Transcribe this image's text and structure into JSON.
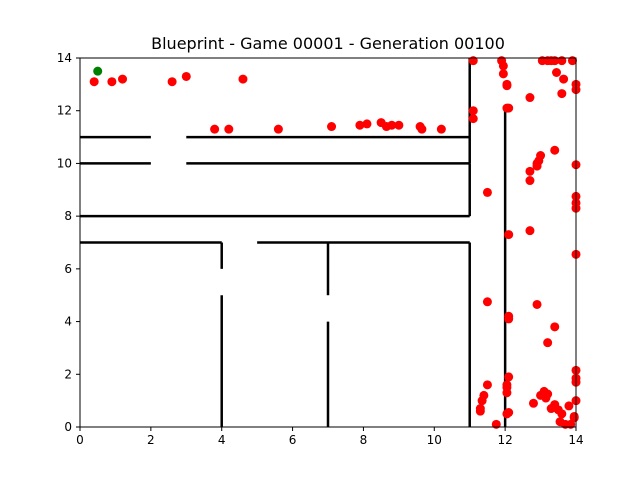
{
  "chart_data": {
    "type": "scatter",
    "title": "Blueprint - Game 00001 - Generation 00100",
    "xlabel": "",
    "ylabel": "",
    "xlim": [
      0,
      14
    ],
    "ylim": [
      0,
      14
    ],
    "x_ticks": [
      "0",
      "2",
      "4",
      "6",
      "8",
      "10",
      "12",
      "14"
    ],
    "y_ticks": [
      "0",
      "2",
      "4",
      "6",
      "8",
      "10",
      "12",
      "14"
    ],
    "grid": false,
    "walls": [
      [
        [
          11,
          14
        ],
        [
          11,
          10
        ]
      ],
      [
        [
          0,
          11
        ],
        [
          2,
          11
        ]
      ],
      [
        [
          3,
          11
        ],
        [
          11,
          11
        ]
      ],
      [
        [
          0,
          10
        ],
        [
          2,
          10
        ]
      ],
      [
        [
          3,
          10
        ],
        [
          11,
          10
        ]
      ],
      [
        [
          11,
          10
        ],
        [
          11,
          8
        ]
      ],
      [
        [
          0,
          8
        ],
        [
          11,
          8
        ]
      ],
      [
        [
          0,
          7
        ],
        [
          4,
          7
        ]
      ],
      [
        [
          5,
          7
        ],
        [
          11,
          7
        ]
      ],
      [
        [
          4,
          7
        ],
        [
          4,
          6
        ]
      ],
      [
        [
          4,
          5
        ],
        [
          4,
          0
        ]
      ],
      [
        [
          7,
          7
        ],
        [
          7,
          5
        ]
      ],
      [
        [
          7,
          4
        ],
        [
          7,
          0
        ]
      ],
      [
        [
          11,
          7
        ],
        [
          11,
          0
        ]
      ],
      [
        [
          12,
          12
        ],
        [
          12,
          0
        ]
      ]
    ],
    "goal": {
      "x": 0.5,
      "y": 13.5,
      "color": "#008000"
    },
    "agent_color": "#ff0000",
    "agents": [
      [
        0.4,
        13.1
      ],
      [
        0.9,
        13.1
      ],
      [
        1.2,
        13.2
      ],
      [
        2.6,
        13.1
      ],
      [
        3.0,
        13.3
      ],
      [
        4.6,
        13.2
      ],
      [
        3.8,
        11.3
      ],
      [
        4.2,
        11.3
      ],
      [
        5.6,
        11.3
      ],
      [
        7.1,
        11.4
      ],
      [
        7.9,
        11.45
      ],
      [
        8.1,
        11.5
      ],
      [
        8.5,
        11.55
      ],
      [
        8.65,
        11.4
      ],
      [
        8.8,
        11.45
      ],
      [
        9.0,
        11.45
      ],
      [
        9.6,
        11.4
      ],
      [
        9.65,
        11.3
      ],
      [
        10.2,
        11.3
      ],
      [
        11.1,
        13.9
      ],
      [
        11.1,
        12.0
      ],
      [
        11.1,
        11.7
      ],
      [
        11.5,
        8.9
      ],
      [
        11.5,
        4.75
      ],
      [
        11.5,
        1.6
      ],
      [
        11.4,
        1.2
      ],
      [
        11.35,
        1.0
      ],
      [
        11.3,
        0.7
      ],
      [
        11.3,
        0.6
      ],
      [
        11.75,
        0.1
      ],
      [
        11.9,
        13.9
      ],
      [
        11.95,
        13.7
      ],
      [
        11.95,
        13.4
      ],
      [
        12.05,
        13.0
      ],
      [
        12.05,
        12.95
      ],
      [
        12.05,
        12.1
      ],
      [
        12.1,
        12.1
      ],
      [
        12.1,
        7.3
      ],
      [
        12.1,
        4.2
      ],
      [
        12.1,
        4.1
      ],
      [
        12.1,
        1.9
      ],
      [
        12.05,
        1.6
      ],
      [
        12.05,
        1.3
      ],
      [
        12.05,
        1.5
      ],
      [
        12.05,
        0.5
      ],
      [
        12.1,
        0.55
      ],
      [
        12.7,
        12.5
      ],
      [
        12.7,
        9.7
      ],
      [
        12.7,
        9.35
      ],
      [
        12.9,
        10.0
      ],
      [
        13.0,
        10.3
      ],
      [
        12.95,
        10.1
      ],
      [
        12.9,
        9.9
      ],
      [
        13.4,
        10.5
      ],
      [
        12.7,
        7.45
      ],
      [
        12.9,
        4.65
      ],
      [
        13.4,
        3.8
      ],
      [
        13.2,
        3.2
      ],
      [
        12.8,
        0.9
      ],
      [
        13.0,
        1.2
      ],
      [
        13.1,
        1.35
      ],
      [
        13.15,
        1.1
      ],
      [
        13.2,
        1.25
      ],
      [
        13.3,
        0.7
      ],
      [
        13.4,
        0.85
      ],
      [
        13.5,
        0.65
      ],
      [
        13.6,
        0.5
      ],
      [
        13.55,
        0.2
      ],
      [
        13.7,
        0.1
      ],
      [
        13.8,
        0.8
      ],
      [
        13.85,
        0.1
      ],
      [
        13.95,
        0.35
      ],
      [
        14.0,
        1.0
      ],
      [
        14.0,
        1.7
      ],
      [
        14.0,
        1.85
      ],
      [
        14.0,
        2.15
      ],
      [
        13.95,
        0.4
      ],
      [
        13.05,
        13.9
      ],
      [
        13.2,
        13.9
      ],
      [
        13.3,
        13.9
      ],
      [
        13.4,
        13.9
      ],
      [
        13.45,
        13.45
      ],
      [
        13.6,
        13.9
      ],
      [
        13.65,
        13.2
      ],
      [
        13.6,
        12.65
      ],
      [
        13.9,
        13.9
      ],
      [
        14.0,
        13.0
      ],
      [
        14.0,
        12.8
      ],
      [
        14.0,
        9.95
      ],
      [
        14.0,
        8.75
      ],
      [
        14.0,
        8.5
      ],
      [
        14.0,
        8.3
      ],
      [
        14.0,
        6.55
      ]
    ]
  }
}
